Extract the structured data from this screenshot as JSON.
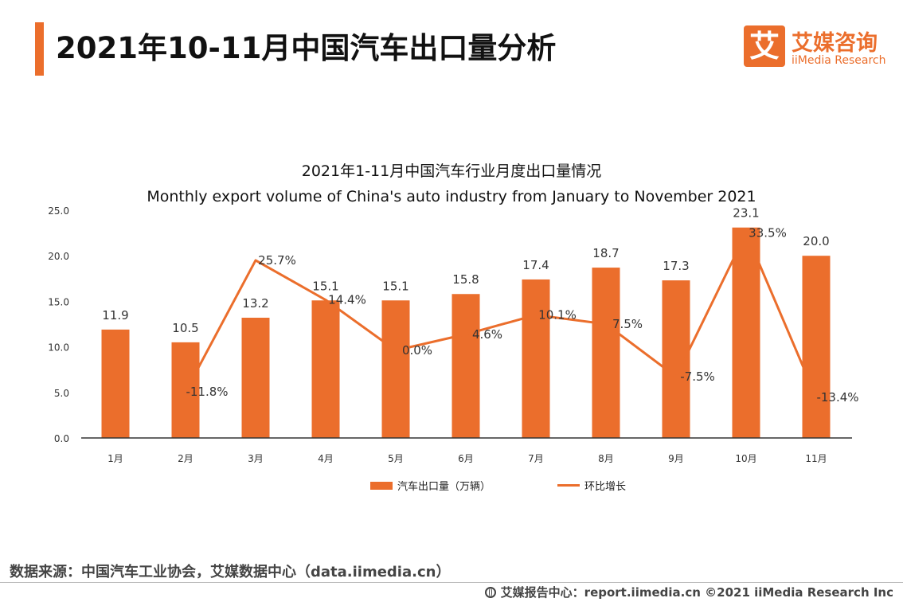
{
  "header": {
    "title": "2021年10-11月中国汽车出口量分析",
    "logo_mark": "艾",
    "logo_cn": "艾媒咨询",
    "logo_en": "iiMedia Research"
  },
  "chart_data": {
    "type": "bar",
    "title": "2021年1-11月中国汽车行业月度出口量情况",
    "subtitle": "Monthly export volume of China's auto industry from January to November 2021",
    "categories": [
      "1月",
      "2月",
      "3月",
      "4月",
      "5月",
      "6月",
      "7月",
      "8月",
      "9月",
      "10月",
      "11月"
    ],
    "series": [
      {
        "name": "汽车出口量（万辆）",
        "type": "bar",
        "values": [
          11.9,
          10.5,
          13.2,
          15.1,
          15.1,
          15.8,
          17.4,
          18.7,
          17.3,
          23.1,
          20.0
        ],
        "labels": [
          "11.9",
          "10.5",
          "13.2",
          "15.1",
          "15.1",
          "15.8",
          "17.4",
          "18.7",
          "17.3",
          "23.1",
          "20.0"
        ]
      },
      {
        "name": "环比增长",
        "type": "line",
        "values": [
          null,
          -11.8,
          25.7,
          14.4,
          0.0,
          4.6,
          10.1,
          7.5,
          -7.5,
          33.5,
          -13.4
        ],
        "labels": [
          "",
          "-11.8%",
          "25.7%",
          "14.4%",
          "0.0%",
          "4.6%",
          "10.1%",
          "7.5%",
          "-7.5%",
          "33.5%",
          "-13.4%"
        ]
      }
    ],
    "y_ticks": [
      "0.0",
      "5.0",
      "10.0",
      "15.0",
      "20.0",
      "25.0"
    ],
    "ylim": [
      0,
      25
    ],
    "line_ylim": [
      -25,
      40
    ],
    "grid": false,
    "legend": "bottom",
    "color": "#EB6E2C"
  },
  "source": "数据来源：中国汽车工业协会，艾媒数据中心（data.iimedia.cn）",
  "footer": "艾媒报告中心：report.iimedia.cn  ©2021  iiMedia Research  Inc"
}
